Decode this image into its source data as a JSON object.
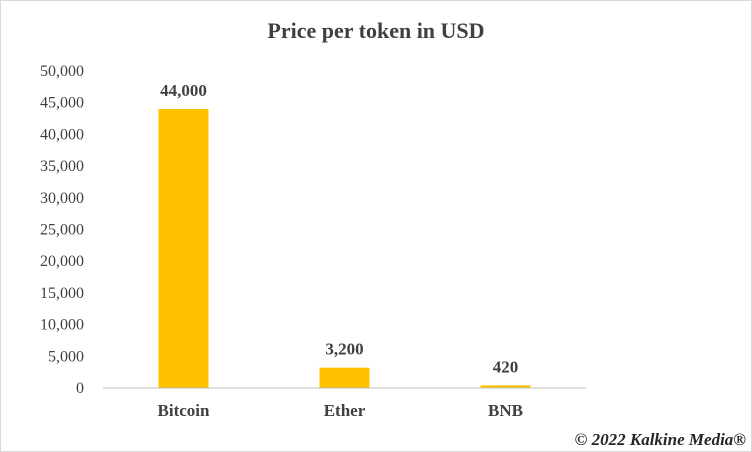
{
  "chart_data": {
    "type": "bar",
    "title": "Price per token in  USD",
    "categories": [
      "Bitcoin",
      "Ether",
      "BNB"
    ],
    "values": [
      44000,
      3200,
      420
    ],
    "data_labels": [
      "44,000",
      "3,200",
      "420"
    ],
    "ylim": [
      0,
      50000
    ],
    "yticks": [
      "0",
      "5,000",
      "10,000",
      "15,000",
      "20,000",
      "25,000",
      "30,000",
      "35,000",
      "40,000",
      "45,000",
      "50,000"
    ],
    "ytick_values": [
      0,
      5000,
      10000,
      15000,
      20000,
      25000,
      30000,
      35000,
      40000,
      45000,
      50000
    ],
    "grid": false,
    "bar_color": "#FFC000",
    "xlabel": "",
    "ylabel": ""
  },
  "credit": "© 2022 Kalkine Media®"
}
